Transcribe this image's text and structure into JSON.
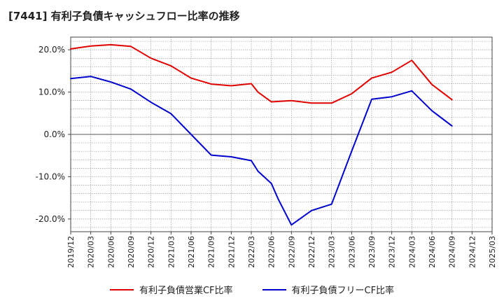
{
  "title": "[7441]  有利子負債キャッシュフロー比率の推移",
  "chart_data": {
    "type": "line",
    "x": [
      "2019/12",
      "2020/03",
      "2020/06",
      "2020/09",
      "2020/12",
      "2021/03",
      "2021/06",
      "2021/09",
      "2021/12",
      "2022/03",
      "2022/06",
      "2022/09",
      "2022/12",
      "2023/03",
      "2023/06",
      "2023/09",
      "2023/12",
      "2024/03",
      "2024/06",
      "2024/09",
      "2024/12",
      "2025/03"
    ],
    "xlabel": "",
    "ylabel": "",
    "ylim": [
      -23,
      23
    ],
    "yticks": [
      20,
      10,
      0,
      -10,
      -20
    ],
    "ytick_labels": [
      "20.0%",
      "10.0%",
      "0.0%",
      "-10.0%",
      "-20.0%"
    ],
    "grid": true,
    "legend_position": "bottom",
    "series": [
      {
        "name": "有利子負債営業CF比率",
        "color": "#e00000",
        "points": [
          {
            "x": "2019/12",
            "y": 20.2
          },
          {
            "x": "2020/03",
            "y": 20.9
          },
          {
            "x": "2020/06",
            "y": 21.2
          },
          {
            "x": "2020/09",
            "y": 20.8
          },
          {
            "x": "2020/12",
            "y": 18.0
          },
          {
            "x": "2021/03",
            "y": 16.2
          },
          {
            "x": "2021/06",
            "y": 13.3
          },
          {
            "x": "2021/09",
            "y": 11.9
          },
          {
            "x": "2021/12",
            "y": 11.5
          },
          {
            "x": "2022/03",
            "y": 12.0
          },
          {
            "x": "2022/04",
            "y": 10.0
          },
          {
            "x": "2022/06",
            "y": 7.7
          },
          {
            "x": "2022/09",
            "y": 8.0
          },
          {
            "x": "2022/12",
            "y": 7.4
          },
          {
            "x": "2023/03",
            "y": 7.4
          },
          {
            "x": "2023/06",
            "y": 9.6
          },
          {
            "x": "2023/09",
            "y": 13.3
          },
          {
            "x": "2023/12",
            "y": 14.7
          },
          {
            "x": "2024/03",
            "y": 17.5
          },
          {
            "x": "2024/06",
            "y": 11.8
          },
          {
            "x": "2024/09",
            "y": 8.2
          }
        ]
      },
      {
        "name": "有利子負債フリーCF比率",
        "color": "#0000cc",
        "points": [
          {
            "x": "2019/12",
            "y": 13.2
          },
          {
            "x": "2020/03",
            "y": 13.7
          },
          {
            "x": "2020/06",
            "y": 12.4
          },
          {
            "x": "2020/09",
            "y": 10.7
          },
          {
            "x": "2020/12",
            "y": 7.6
          },
          {
            "x": "2021/03",
            "y": 4.9
          },
          {
            "x": "2021/06",
            "y": 0.0
          },
          {
            "x": "2021/09",
            "y": -4.9
          },
          {
            "x": "2021/12",
            "y": -5.3
          },
          {
            "x": "2022/03",
            "y": -6.2
          },
          {
            "x": "2022/04",
            "y": -8.7
          },
          {
            "x": "2022/06",
            "y": -11.6
          },
          {
            "x": "2022/07",
            "y": -15.2
          },
          {
            "x": "2022/09",
            "y": -21.4
          },
          {
            "x": "2022/12",
            "y": -18.0
          },
          {
            "x": "2023/03",
            "y": -16.5
          },
          {
            "x": "2023/06",
            "y": -4.0
          },
          {
            "x": "2023/09",
            "y": 8.3
          },
          {
            "x": "2023/12",
            "y": 8.9
          },
          {
            "x": "2024/03",
            "y": 10.3
          },
          {
            "x": "2024/06",
            "y": 5.6
          },
          {
            "x": "2024/09",
            "y": 2.0
          }
        ]
      }
    ]
  }
}
